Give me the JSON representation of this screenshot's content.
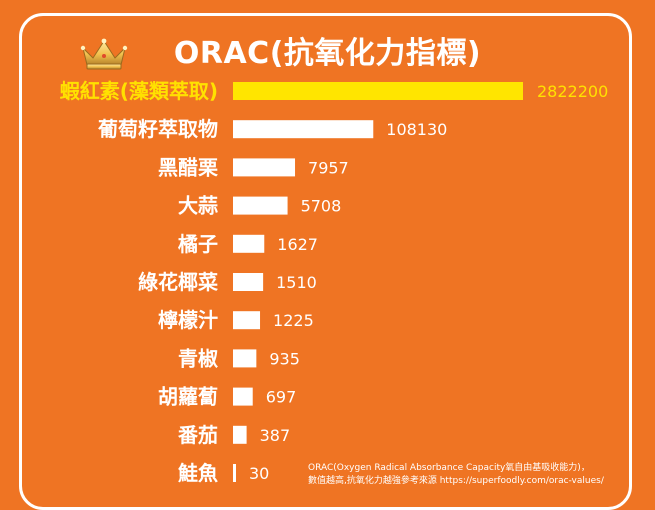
{
  "colors": {
    "background": "#ef7423",
    "bar": "#ffffff",
    "highlight": "#ffe500",
    "highlight_text": "#ffe100",
    "text": "#ffffff"
  },
  "icons": {
    "crown": "crown-icon"
  },
  "chart_data": {
    "type": "bar",
    "orientation": "horizontal",
    "title": "ORAC(抗氧化力指標)",
    "categories": [
      "蝦紅素(藻類萃取)",
      "葡萄籽萃取物",
      "黑醋栗",
      "大蒜",
      "橘子",
      "綠花椰菜",
      "檸檬汁",
      "青椒",
      "胡蘿蔔",
      "番茄",
      "鮭魚"
    ],
    "values": [
      2822200,
      108130,
      7957,
      5708,
      1627,
      1510,
      1225,
      935,
      697,
      387,
      30
    ],
    "value_labels": [
      "2822200",
      "108130",
      "7957",
      "5708",
      "1627",
      "1510",
      "1225",
      "935",
      "697",
      "387",
      "30"
    ],
    "highlight_index": 0,
    "scale": "non-linear",
    "grid": false,
    "legend": "none",
    "xlabel": "",
    "ylabel": ""
  },
  "footnote": {
    "line1": "ORAC(Oxygen Radical Absorbance Capacity氧自由基吸收能力)，",
    "line2": "數值越高,抗氧化力越強參考來源 https://superfoodly.com/orac-values/"
  }
}
